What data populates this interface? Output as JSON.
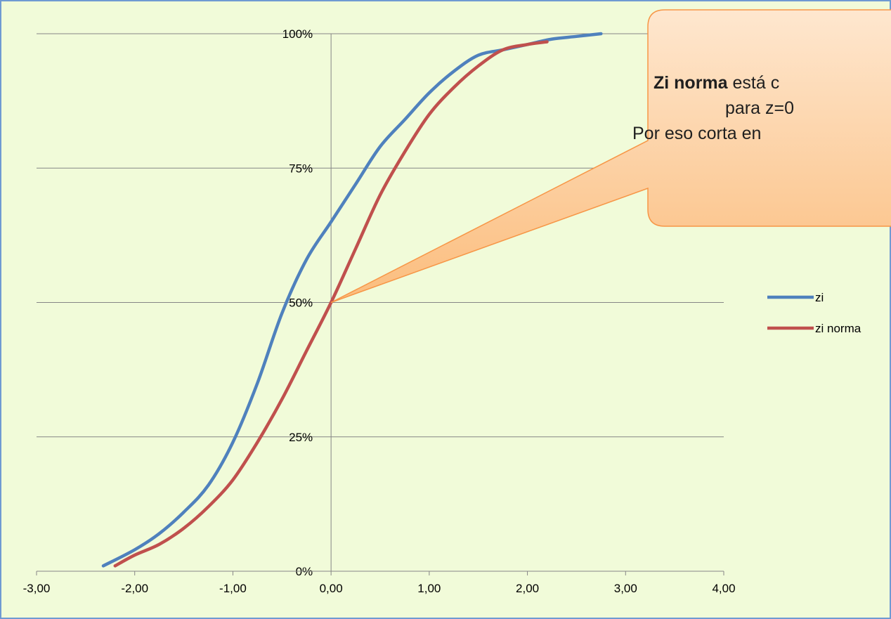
{
  "chart_data": {
    "type": "line",
    "title": "",
    "xlabel": "",
    "ylabel": "",
    "xlim": [
      -3,
      4
    ],
    "ylim": [
      0,
      1
    ],
    "x_tick_labels": [
      "-3,00",
      "-2,00",
      "-1,00",
      "0,00",
      "1,00",
      "2,00",
      "3,00",
      "4,00"
    ],
    "y_tick_labels": [
      "0%",
      "25%",
      "50%",
      "75%",
      "100%"
    ],
    "grid": "horizontal",
    "legend_position": "right",
    "series": [
      {
        "name": "zi",
        "color": "#4f81bd",
        "points": [
          [
            -2.32,
            0.01
          ],
          [
            -2.0,
            0.04
          ],
          [
            -1.75,
            0.07
          ],
          [
            -1.5,
            0.11
          ],
          [
            -1.25,
            0.16
          ],
          [
            -1.0,
            0.24
          ],
          [
            -0.75,
            0.35
          ],
          [
            -0.5,
            0.48
          ],
          [
            -0.25,
            0.58
          ],
          [
            0.0,
            0.65
          ],
          [
            0.25,
            0.72
          ],
          [
            0.5,
            0.79
          ],
          [
            0.75,
            0.84
          ],
          [
            1.0,
            0.89
          ],
          [
            1.25,
            0.93
          ],
          [
            1.5,
            0.96
          ],
          [
            1.75,
            0.97
          ],
          [
            2.0,
            0.98
          ],
          [
            2.25,
            0.99
          ],
          [
            2.5,
            0.995
          ],
          [
            2.75,
            1.0
          ]
        ]
      },
      {
        "name": "zi norma",
        "color": "#c0504d",
        "points": [
          [
            -2.2,
            0.01
          ],
          [
            -2.0,
            0.03
          ],
          [
            -1.75,
            0.05
          ],
          [
            -1.5,
            0.08
          ],
          [
            -1.25,
            0.12
          ],
          [
            -1.0,
            0.17
          ],
          [
            -0.75,
            0.24
          ],
          [
            -0.5,
            0.32
          ],
          [
            -0.25,
            0.41
          ],
          [
            0.0,
            0.5
          ],
          [
            0.25,
            0.6
          ],
          [
            0.5,
            0.7
          ],
          [
            0.75,
            0.78
          ],
          [
            1.0,
            0.85
          ],
          [
            1.25,
            0.9
          ],
          [
            1.5,
            0.94
          ],
          [
            1.75,
            0.97
          ],
          [
            2.0,
            0.98
          ],
          [
            2.2,
            0.985
          ]
        ]
      }
    ],
    "annotation": {
      "bold": "Zi norma",
      "line1_rest": " está c",
      "line2": "para z=0",
      "line3": "Por eso corta en",
      "point": [
        0.0,
        0.5
      ]
    }
  }
}
